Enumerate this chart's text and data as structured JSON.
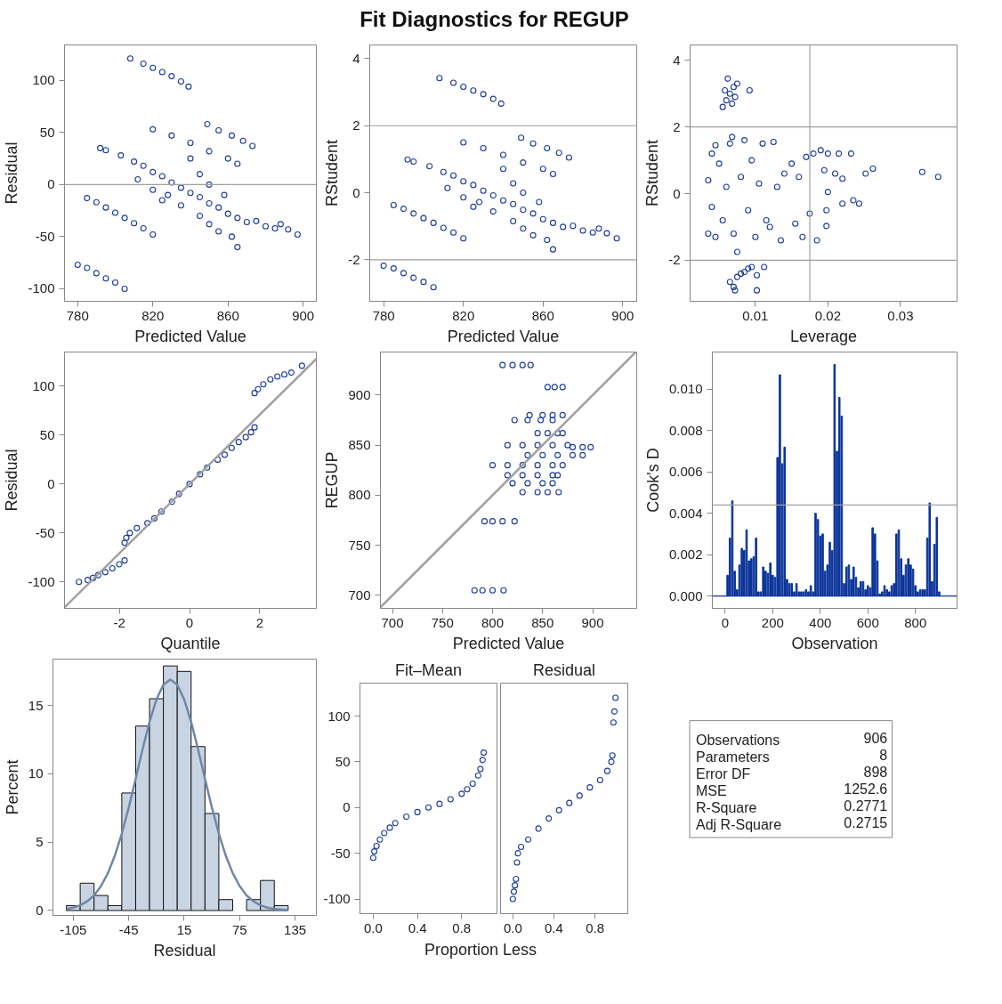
{
  "chart_data": [
    {
      "type": "other",
      "title": "Fit Diagnostics for REGUP"
    },
    {
      "type": "scatter",
      "xlabel": "Predicted Value",
      "ylabel": "Residual",
      "marker": "circle",
      "color": "#1a3a9b",
      "xlim": [
        773,
        907
      ],
      "ylim": [
        -112,
        134
      ],
      "xticks": [
        780,
        820,
        860,
        900
      ],
      "yticks": [
        -100,
        -50,
        0,
        50,
        100
      ],
      "ref_lines": [
        {
          "axis": "y",
          "value": 0,
          "color": "#a0a0a0"
        }
      ],
      "x": [
        808,
        815,
        820,
        825,
        830,
        835,
        839,
        820,
        830,
        840,
        850,
        860,
        865,
        849,
        855,
        862,
        868,
        873,
        792,
        795,
        803,
        810,
        815,
        820,
        825,
        830,
        835,
        840,
        845,
        850,
        855,
        860,
        865,
        870,
        812,
        820,
        828,
        835,
        845,
        850,
        855,
        862,
        865,
        825,
        840,
        845,
        850,
        858,
        875,
        880,
        885,
        888,
        892,
        897,
        785,
        790,
        795,
        800,
        805,
        810,
        815,
        820,
        780,
        785,
        790,
        795,
        800,
        805
      ],
      "values": [
        121,
        116,
        112,
        108,
        104,
        99,
        94,
        53,
        47,
        40,
        32,
        25,
        20,
        58,
        52,
        47,
        42,
        37,
        35,
        33,
        28,
        22,
        18,
        12,
        8,
        2,
        -3,
        -8,
        -12,
        -18,
        -22,
        -28,
        -32,
        -36,
        5,
        -5,
        -10,
        -20,
        -30,
        -38,
        -45,
        -50,
        -60,
        -15,
        25,
        10,
        0,
        -10,
        -35,
        -40,
        -42,
        -38,
        -43,
        -48,
        -13,
        -17,
        -22,
        -27,
        -32,
        -37,
        -42,
        -48,
        -77,
        -80,
        -85,
        -90,
        -94,
        -100
      ]
    },
    {
      "type": "scatter",
      "xlabel": "Predicted Value",
      "ylabel": "RStudent",
      "marker": "circle",
      "color": "#1a3a9b",
      "xlim": [
        773,
        907
      ],
      "ylim": [
        -3.24,
        4.41
      ],
      "xticks": [
        780,
        820,
        860,
        900
      ],
      "yticks": [
        -2,
        0,
        2,
        4
      ],
      "ref_lines": [
        {
          "axis": "y",
          "value": 2,
          "color": "#a0a0a0"
        },
        {
          "axis": "y",
          "value": -2,
          "color": "#a0a0a0"
        }
      ],
      "x": [
        808,
        815,
        820,
        825,
        830,
        835,
        839,
        820,
        830,
        840,
        850,
        860,
        865,
        849,
        855,
        862,
        868,
        873,
        792,
        795,
        803,
        810,
        815,
        820,
        825,
        830,
        835,
        840,
        845,
        850,
        855,
        860,
        865,
        870,
        812,
        820,
        828,
        835,
        845,
        850,
        855,
        862,
        865,
        825,
        840,
        845,
        850,
        858,
        875,
        880,
        885,
        888,
        892,
        897,
        785,
        790,
        795,
        800,
        805,
        810,
        815,
        820,
        780,
        785,
        790,
        795,
        800,
        805
      ],
      "values": [
        3.42,
        3.28,
        3.16,
        3.05,
        2.94,
        2.8,
        2.66,
        1.5,
        1.33,
        1.13,
        0.9,
        0.71,
        0.56,
        1.64,
        1.47,
        1.33,
        1.19,
        1.05,
        0.99,
        0.93,
        0.79,
        0.62,
        0.51,
        0.34,
        0.23,
        0.06,
        -0.08,
        -0.23,
        -0.34,
        -0.51,
        -0.62,
        -0.79,
        -0.9,
        -1.02,
        0.14,
        -0.14,
        -0.28,
        -0.56,
        -0.85,
        -1.07,
        -1.27,
        -1.41,
        -1.69,
        -0.42,
        0.71,
        0.28,
        0,
        -0.28,
        -0.99,
        -1.13,
        -1.19,
        -1.07,
        -1.21,
        -1.36,
        -0.37,
        -0.48,
        -0.62,
        -0.76,
        -0.9,
        -1.05,
        -1.19,
        -1.36,
        -2.18,
        -2.26,
        -2.4,
        -2.54,
        -2.66,
        -2.82
      ]
    },
    {
      "type": "scatter",
      "xlabel": "Leverage",
      "ylabel": "RStudent",
      "marker": "circle",
      "color": "#1a3a9b",
      "xlim": [
        0.001,
        0.0378
      ],
      "ylim": [
        -3.23,
        4.46
      ],
      "xticks": [
        0.01,
        0.02,
        0.03
      ],
      "yticks": [
        -2,
        0,
        2,
        4
      ],
      "ref_lines": [
        {
          "axis": "y",
          "value": 2,
          "color": "#a0a0a0"
        },
        {
          "axis": "y",
          "value": -2,
          "color": "#a0a0a0"
        },
        {
          "axis": "x",
          "value": 0.0175,
          "color": "#a0a0a0"
        }
      ],
      "x": [
        0.0055,
        0.006,
        0.0065,
        0.007,
        0.0062,
        0.0072,
        0.0068,
        0.0075,
        0.0058,
        0.0092,
        0.0065,
        0.007,
        0.0075,
        0.008,
        0.0085,
        0.009,
        0.0095,
        0.0112,
        0.0102,
        0.0102,
        0.0072,
        0.0035,
        0.004,
        0.0045,
        0.004,
        0.0035,
        0.0045,
        0.005,
        0.0055,
        0.006,
        0.0065,
        0.0068,
        0.007,
        0.0075,
        0.008,
        0.0085,
        0.009,
        0.0095,
        0.01,
        0.0105,
        0.011,
        0.0115,
        0.012,
        0.0125,
        0.013,
        0.0135,
        0.014,
        0.015,
        0.0155,
        0.016,
        0.0165,
        0.017,
        0.0175,
        0.018,
        0.0185,
        0.019,
        0.0195,
        0.02,
        0.0198,
        0.0198,
        0.02,
        0.021,
        0.0215,
        0.022,
        0.022,
        0.0232,
        0.0235,
        0.0243,
        0.0252,
        0.0262,
        0.033,
        0.0352
      ],
      "values": [
        2.6,
        2.8,
        3.0,
        3.2,
        3.45,
        2.9,
        2.7,
        3.3,
        3.1,
        3.1,
        -2.65,
        -2.8,
        -2.5,
        -2.4,
        -2.35,
        -2.25,
        -2.2,
        -2.2,
        -2.45,
        -2.9,
        -2.9,
        0.4,
        1.2,
        1.45,
        -0.4,
        -1.2,
        -1.3,
        0.9,
        -0.8,
        0.2,
        1.5,
        1.7,
        -1.2,
        -1.75,
        0.5,
        1.6,
        -0.5,
        1.0,
        -1.3,
        0.3,
        1.5,
        -0.8,
        -1.0,
        1.55,
        0.2,
        -1.4,
        0.6,
        0.9,
        -0.9,
        0.5,
        -1.3,
        1.1,
        -0.6,
        1.2,
        -1.4,
        1.3,
        0.7,
        0.05,
        -0.5,
        -0.97,
        1.2,
        0.6,
        1.2,
        0.45,
        -0.3,
        1.2,
        -0.2,
        -0.3,
        0.6,
        0.75,
        0.65,
        0.5
      ]
    },
    {
      "type": "scatter",
      "xlabel": "Quantile",
      "ylabel": "Residual",
      "marker": "circle",
      "color": "#1a3a9b",
      "xlim": [
        -3.56,
        3.61
      ],
      "ylim": [
        -127,
        135
      ],
      "xticks": [
        -2,
        0,
        2
      ],
      "yticks": [
        -100,
        -50,
        0,
        50,
        100
      ],
      "x": [
        -3.15,
        -2.9,
        -2.75,
        -2.6,
        -2.4,
        -2.2,
        -2.0,
        -1.85,
        -1.85,
        -1.8,
        -1.7,
        -1.5,
        -1.2,
        -1.0,
        -0.8,
        -0.5,
        -0.3,
        0,
        0.3,
        0.5,
        0.8,
        1.0,
        1.2,
        1.4,
        1.6,
        1.75,
        1.85,
        1.85,
        1.95,
        2.1,
        2.3,
        2.5,
        2.7,
        2.9,
        3.2
      ],
      "values": [
        -100,
        -98,
        -96,
        -93,
        -90,
        -86,
        -82,
        -78,
        -60,
        -55,
        -50,
        -45,
        -40,
        -35,
        -28,
        -18,
        -10,
        0,
        10,
        17,
        25,
        30,
        37,
        43,
        48,
        53,
        58,
        93,
        97,
        102,
        107,
        110,
        112,
        114,
        121
      ],
      "series": [
        {
          "type": "line",
          "marker": "none",
          "color": "#a0a0a0",
          "x": [
            -3.56,
            3.61
          ],
          "values": [
            -126,
            128
          ]
        }
      ]
    },
    {
      "type": "scatter",
      "xlabel": "Predicted Value",
      "ylabel": "REGUP",
      "marker": "circle",
      "color": "#1a3a9b",
      "xlim": [
        688,
        944
      ],
      "ylim": [
        687,
        943
      ],
      "xticks": [
        700,
        750,
        800,
        850,
        900
      ],
      "yticks": [
        700,
        750,
        800,
        850,
        900
      ],
      "x": [
        810,
        820,
        830,
        838,
        855,
        862,
        870,
        837,
        850,
        860,
        870,
        822,
        835,
        848,
        860,
        845,
        855,
        865,
        870,
        815,
        830,
        845,
        860,
        875,
        880,
        890,
        898,
        835,
        850,
        865,
        880,
        890,
        800,
        815,
        830,
        845,
        860,
        870,
        815,
        830,
        845,
        860,
        865,
        820,
        835,
        850,
        860,
        830,
        845,
        855,
        866,
        792,
        800,
        810,
        822,
        782,
        790,
        800,
        811
      ],
      "values": [
        930,
        930,
        930,
        930,
        908,
        908,
        908,
        880,
        880,
        880,
        880,
        875,
        875,
        875,
        875,
        862,
        862,
        862,
        862,
        850,
        850,
        850,
        850,
        850,
        848,
        848,
        848,
        840,
        840,
        840,
        840,
        840,
        830,
        830,
        830,
        830,
        830,
        830,
        820,
        820,
        820,
        820,
        820,
        812,
        812,
        812,
        812,
        803,
        803,
        803,
        803,
        774,
        774,
        774,
        774,
        705,
        705,
        705,
        705
      ],
      "series": [
        {
          "type": "line",
          "marker": "none",
          "color": "#a0a0a0",
          "x": [
            688,
            943
          ],
          "values": [
            688,
            943
          ]
        }
      ]
    },
    {
      "type": "bar",
      "xlabel": "Observation",
      "ylabel": "Cook's D",
      "color": "#0b349a",
      "xlim": [
        -54,
        975
      ],
      "ylim": [
        -0.0006,
        0.0118
      ],
      "xticks": [
        0,
        200,
        400,
        600,
        800
      ],
      "yticks": [
        {
          "value": 0,
          "label": "0.000"
        },
        {
          "value": 0.002,
          "label": "0.002"
        },
        {
          "value": 0.004,
          "label": "0.004"
        },
        {
          "value": 0.006,
          "label": "0.006"
        },
        {
          "value": 0.008,
          "label": "0.008"
        },
        {
          "value": 0.01,
          "label": "0.010"
        }
      ],
      "ref_lines": [
        {
          "axis": "y",
          "value": 0.0044,
          "color": "#a0a0a0"
        },
        {
          "axis": "y",
          "value": 0,
          "color": "#0b349a"
        }
      ],
      "x": [
        0,
        10,
        20,
        30,
        40,
        50,
        60,
        70,
        80,
        90,
        100,
        110,
        120,
        130,
        140,
        150,
        160,
        170,
        180,
        190,
        200,
        210,
        220,
        230,
        240,
        250,
        260,
        270,
        280,
        290,
        300,
        310,
        320,
        330,
        340,
        350,
        360,
        370,
        380,
        390,
        400,
        410,
        420,
        430,
        440,
        450,
        460,
        470,
        480,
        490,
        500,
        510,
        520,
        530,
        540,
        550,
        560,
        570,
        580,
        590,
        600,
        610,
        620,
        630,
        640,
        650,
        660,
        670,
        680,
        690,
        700,
        710,
        720,
        730,
        740,
        750,
        760,
        770,
        780,
        790,
        800,
        810,
        820,
        830,
        840,
        850,
        860,
        870,
        880,
        890,
        900
      ],
      "values": [
        0,
        0.001,
        0.0028,
        0.0046,
        0.0012,
        0.0003,
        0.0015,
        0.0023,
        0.0022,
        0.0032,
        0.0017,
        0.0018,
        0.0019,
        0.0028,
        0.0002,
        0.0002,
        0.0014,
        0.0012,
        0.0011,
        0.0016,
        0.001,
        0.0009,
        0.0067,
        0.0107,
        0.0064,
        0.0072,
        0.0008,
        0.0006,
        0.0006,
        0.0002,
        0.0006,
        0.0002,
        0.0002,
        0.0002,
        0.0003,
        0.0002,
        0.0005,
        0.0002,
        0.004,
        0.0037,
        0.0029,
        0.003,
        0.0012,
        0.0015,
        0.0026,
        0.0022,
        0.0112,
        0.007,
        0.0096,
        0.0087,
        0.0006,
        0.0014,
        0.0015,
        0.0008,
        0.0014,
        0.0009,
        0.0004,
        0.0007,
        0.0007,
        0.0003,
        0.0005,
        0.0004,
        0.0033,
        0.003,
        0.0017,
        0.0001,
        0.0002,
        0.0005,
        0.0003,
        0.0002,
        0.0005,
        0.0006,
        0.003,
        0.0032,
        0.0018,
        0.001,
        0.0015,
        0.0018,
        0.0015,
        0.0013,
        0.0005,
        0.0002,
        0.0003,
        0.0003,
        0.0003,
        0.0028,
        0.0045,
        0.0007,
        0.0025,
        0.0038,
        0.0002
      ]
    },
    {
      "type": "histogram",
      "xlabel": "Residual",
      "ylabel": "Percent",
      "color": "#c9d4e3",
      "xlim": [
        -127,
        158
      ],
      "ylim": [
        -0.36,
        18.4
      ],
      "xticks": [
        -105,
        -45,
        15,
        75,
        135
      ],
      "yticks": [
        0,
        5,
        10,
        15
      ],
      "bins": [
        -112.5,
        -97.5,
        -82.5,
        -67.5,
        -52.5,
        -37.5,
        -22.5,
        -7.5,
        7.5,
        22.5,
        37.5,
        52.5,
        67.5,
        82.5,
        97.5,
        112.5,
        127.5
      ],
      "values": [
        0.36,
        2.0,
        1.1,
        0.36,
        8.6,
        13.5,
        15.5,
        17.9,
        17.5,
        12.0,
        7.1,
        0.8,
        null,
        0.8,
        2.2,
        0.36
      ],
      "series": [
        {
          "type": "line",
          "color": "#6f88a8",
          "x": [
            -112.5,
            -105,
            -97.5,
            -90,
            -82.5,
            -75,
            -67.5,
            -60,
            -52.5,
            -45,
            -37.5,
            -30,
            -22.5,
            -15,
            -7.5,
            0,
            7.5,
            15,
            22.5,
            30,
            37.5,
            45,
            52.5,
            60,
            67.5,
            75,
            82.5,
            90,
            97.5,
            105,
            112.5,
            127.5
          ],
          "values": [
            0.11,
            0.21,
            0.38,
            0.67,
            1.11,
            1.79,
            2.74,
            4.02,
            5.63,
            7.53,
            9.64,
            11.8,
            13.81,
            15.45,
            16.52,
            16.9,
            16.52,
            15.45,
            13.81,
            11.8,
            9.64,
            7.53,
            5.63,
            4.02,
            2.74,
            1.79,
            1.11,
            0.67,
            0.38,
            0.21,
            0.11,
            0.03
          ]
        }
      ]
    },
    {
      "type": "scatter",
      "title": "Fit–Mean",
      "xlabel": "Proportion Less",
      "marker": "circle",
      "color": "#1a3a9b",
      "xlim": [
        -0.12,
        1.12
      ],
      "ylim": [
        -116,
        136
      ],
      "xticks": [
        {
          "value": 0,
          "label": "0.0"
        },
        0.4,
        0.8
      ],
      "yticks": [
        -100,
        -50,
        0,
        50,
        100
      ],
      "x": [
        0,
        0.01,
        0.03,
        0.06,
        0.1,
        0.15,
        0.2,
        0.3,
        0.4,
        0.5,
        0.6,
        0.7,
        0.8,
        0.85,
        0.9,
        0.95,
        0.97,
        0.99,
        1.0
      ],
      "values": [
        -55,
        -48,
        -42,
        -35,
        -28,
        -22,
        -17,
        -10,
        -5,
        0,
        4,
        9,
        15,
        20,
        26,
        35,
        42,
        52,
        60
      ]
    },
    {
      "type": "scatter",
      "title": "Residual",
      "tick_labels": "x",
      "marker": "circle",
      "color": "#1a3a9b",
      "xlim": [
        -0.12,
        1.12
      ],
      "ylim": [
        -116,
        136
      ],
      "xticks": [
        {
          "value": 0,
          "label": "0.0"
        },
        0.4,
        0.8
      ],
      "x": [
        0,
        0.01,
        0.02,
        0.03,
        0.04,
        0.05,
        0.08,
        0.15,
        0.25,
        0.35,
        0.45,
        0.55,
        0.65,
        0.75,
        0.85,
        0.92,
        0.96,
        0.97,
        0.98,
        0.99,
        1.0
      ],
      "values": [
        -100,
        -92,
        -85,
        -78,
        -60,
        -50,
        -43,
        -35,
        -23,
        -12,
        -3,
        5,
        13,
        22,
        30,
        40,
        50,
        57,
        93,
        105,
        120
      ]
    },
    {
      "type": "other",
      "categories": [
        "Observations",
        "Parameters",
        "Error DF",
        "MSE",
        "R-Square",
        "Adj R-Square"
      ],
      "value_labels": [
        "906",
        "8",
        "898",
        "1252.6",
        "0.2771",
        "0.2715"
      ]
    }
  ]
}
